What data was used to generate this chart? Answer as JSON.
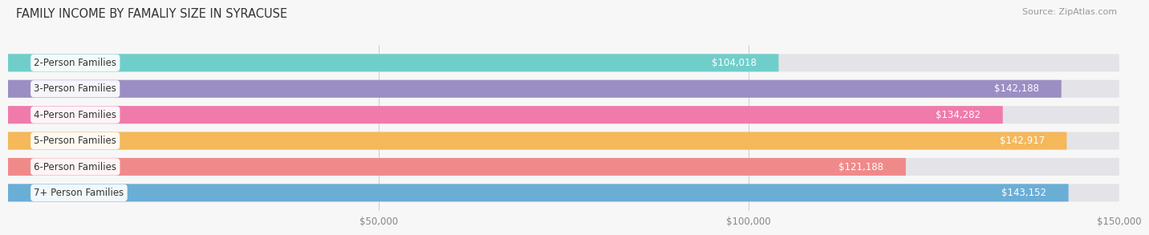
{
  "title": "FAMILY INCOME BY FAMALIY SIZE IN SYRACUSE",
  "source": "Source: ZipAtlas.com",
  "categories": [
    "2-Person Families",
    "3-Person Families",
    "4-Person Families",
    "5-Person Families",
    "6-Person Families",
    "7+ Person Families"
  ],
  "values": [
    104018,
    142188,
    134282,
    142917,
    121188,
    143152
  ],
  "bar_colors": [
    "#70ceca",
    "#9b8ec4",
    "#f07bab",
    "#f5b85a",
    "#f08a8a",
    "#6aaed6"
  ],
  "bar_bg_color": "#e4e4e8",
  "value_labels": [
    "$104,018",
    "$142,188",
    "$134,282",
    "$142,917",
    "$121,188",
    "$143,152"
  ],
  "xlim": [
    0,
    150000
  ],
  "xticks": [
    50000,
    100000,
    150000
  ],
  "xticklabels": [
    "$50,000",
    "$100,000",
    "$150,000"
  ],
  "background_color": "#f7f7f7",
  "bar_height": 0.68,
  "title_fontsize": 10.5,
  "source_fontsize": 8,
  "label_fontsize": 8.5,
  "value_fontsize": 8.5
}
